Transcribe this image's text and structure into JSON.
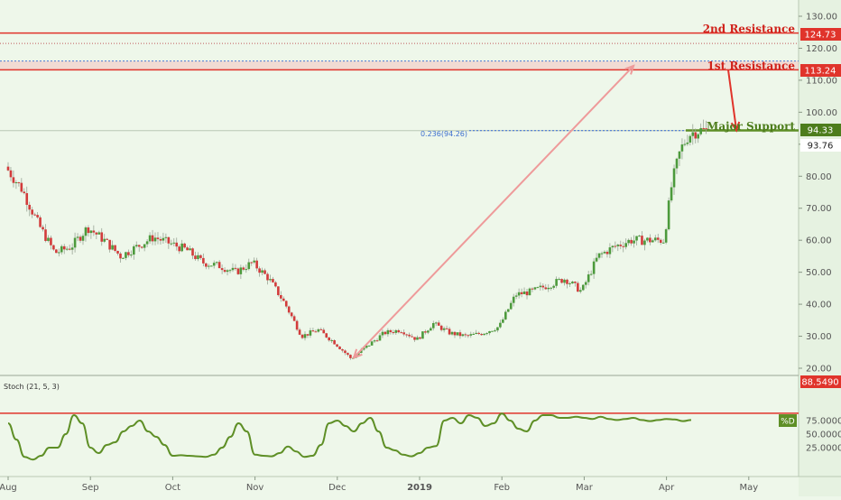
{
  "chart_data": [
    {
      "type": "candlestick",
      "name": "",
      "ylim": [
        18,
        134
      ],
      "y_ticks": [
        "130.00",
        "120.00",
        "110.00",
        "100.00",
        "90.00",
        "80.00",
        "70.00",
        "60.00",
        "50.00",
        "40.00",
        "30.00",
        "20.00"
      ],
      "y_tick_values": [
        130,
        120,
        110,
        100,
        90,
        80,
        70,
        60,
        50,
        40,
        30,
        20
      ],
      "x_ticks": [
        "Aug",
        "Sep",
        "Oct",
        "Nov",
        "Dec",
        "2019",
        "Feb",
        "Mar",
        "Apr",
        "May"
      ],
      "x_tick_months": [
        0,
        1,
        2,
        3,
        4,
        5,
        6,
        7,
        8,
        9
      ],
      "x_range_months": [
        0,
        9.6
      ],
      "series": [
        {
          "x": [
            0.0,
            0.2,
            0.4,
            0.6,
            0.8,
            1.0,
            1.2,
            1.4,
            1.6,
            1.8,
            2.0,
            2.2,
            2.4,
            2.6,
            2.8,
            3.0,
            3.2,
            3.4,
            3.6,
            3.8,
            4.0,
            4.2,
            4.4,
            4.6,
            4.8,
            5.0,
            5.2,
            5.4,
            5.6,
            5.8,
            6.0,
            6.2,
            6.4,
            6.6,
            6.8,
            7.0,
            7.2,
            7.4,
            7.6,
            7.8,
            8.0,
            8.1,
            8.2,
            8.3,
            8.4,
            8.5
          ],
          "y": [
            83,
            76,
            65,
            56,
            58,
            64,
            60,
            55,
            58,
            61,
            59,
            57,
            53,
            52,
            50,
            53,
            48,
            40,
            30,
            32,
            28,
            23,
            27,
            31,
            32,
            29,
            34,
            31,
            30,
            31,
            33,
            43,
            44,
            46,
            48,
            44,
            55,
            58,
            60,
            60,
            60,
            78,
            88,
            93,
            94.3,
            94.3
          ]
        }
      ],
      "annotations": [
        {
          "label": "2nd Resistance",
          "value": 124.73,
          "value_label": "124.73"
        },
        {
          "label": "1st Resistance",
          "value": 113.24,
          "value_label": "113.24",
          "zone_top": 116
        },
        {
          "label": "Major Support",
          "value": 94.33,
          "value_label": "94.33"
        },
        {
          "label": "0.236(94.26)",
          "value": 94.26
        },
        {
          "label": "",
          "value": 121.5
        },
        {
          "label": "",
          "value": 93.76,
          "value_label": "93.76"
        }
      ],
      "fib_arrow": {
        "from": [
          4.2,
          23.3
        ],
        "to": [
          7.6,
          114.5
        ]
      },
      "down_arrow": {
        "from": [
          8.75,
          113.24
        ],
        "to": [
          8.85,
          94.33
        ]
      },
      "colors": {
        "up": "#4c9a3c",
        "down": "#d23b3b",
        "line": "#e0342b",
        "support": "#5e8f26",
        "fib": "#4a78d4",
        "arrow": "#ee9a9a"
      }
    },
    {
      "type": "line",
      "name": "Stoch (21, 5, 3)",
      "ylim": [
        0,
        92
      ],
      "y_ticks": [
        "75.0000",
        "50.0000",
        "25.0000"
      ],
      "y_tick_values": [
        75,
        50,
        25
      ],
      "series": [
        {
          "name": "%D",
          "x": [
            0.0,
            0.1,
            0.2,
            0.3,
            0.4,
            0.5,
            0.6,
            0.7,
            0.8,
            0.9,
            1.0,
            1.1,
            1.2,
            1.3,
            1.4,
            1.5,
            1.6,
            1.7,
            1.8,
            1.9,
            2.0,
            2.1,
            2.2,
            2.3,
            2.4,
            2.5,
            2.6,
            2.7,
            2.8,
            2.9,
            3.0,
            3.1,
            3.2,
            3.3,
            3.4,
            3.5,
            3.6,
            3.7,
            3.8,
            3.9,
            4.0,
            4.1,
            4.2,
            4.3,
            4.4,
            4.5,
            4.6,
            4.7,
            4.8,
            4.9,
            5.0,
            5.1,
            5.2,
            5.3,
            5.4,
            5.5,
            5.6,
            5.7,
            5.8,
            5.9,
            6.0,
            6.1,
            6.2,
            6.3,
            6.4,
            6.5,
            6.6,
            6.7,
            6.8,
            6.9,
            7.0,
            7.1,
            7.2,
            7.3,
            7.4,
            7.5,
            7.6,
            7.7,
            7.8,
            7.9,
            8.0,
            8.1,
            8.2,
            8.3
          ],
          "y": [
            70,
            40,
            8,
            3,
            10,
            25,
            25,
            50,
            85,
            70,
            25,
            15,
            30,
            35,
            55,
            65,
            75,
            55,
            45,
            30,
            10,
            11,
            10,
            9,
            8,
            12,
            25,
            45,
            70,
            55,
            12,
            10,
            9,
            15,
            27,
            18,
            8,
            10,
            30,
            70,
            75,
            65,
            55,
            70,
            80,
            55,
            25,
            20,
            12,
            9,
            15,
            25,
            28,
            75,
            80,
            70,
            85,
            80,
            65,
            70,
            88,
            75,
            60,
            55,
            75,
            85,
            85,
            80,
            80,
            82,
            80,
            78,
            82,
            78,
            76,
            78,
            80,
            76,
            74,
            76,
            78,
            77,
            74,
            76
          ]
        }
      ],
      "annotations": [
        {
          "label": "",
          "value": 88.549,
          "value_label": "88.5490"
        },
        {
          "label": "%D"
        }
      ],
      "colors": {
        "line": "#5e8f26",
        "hline": "#e0342b"
      }
    }
  ]
}
